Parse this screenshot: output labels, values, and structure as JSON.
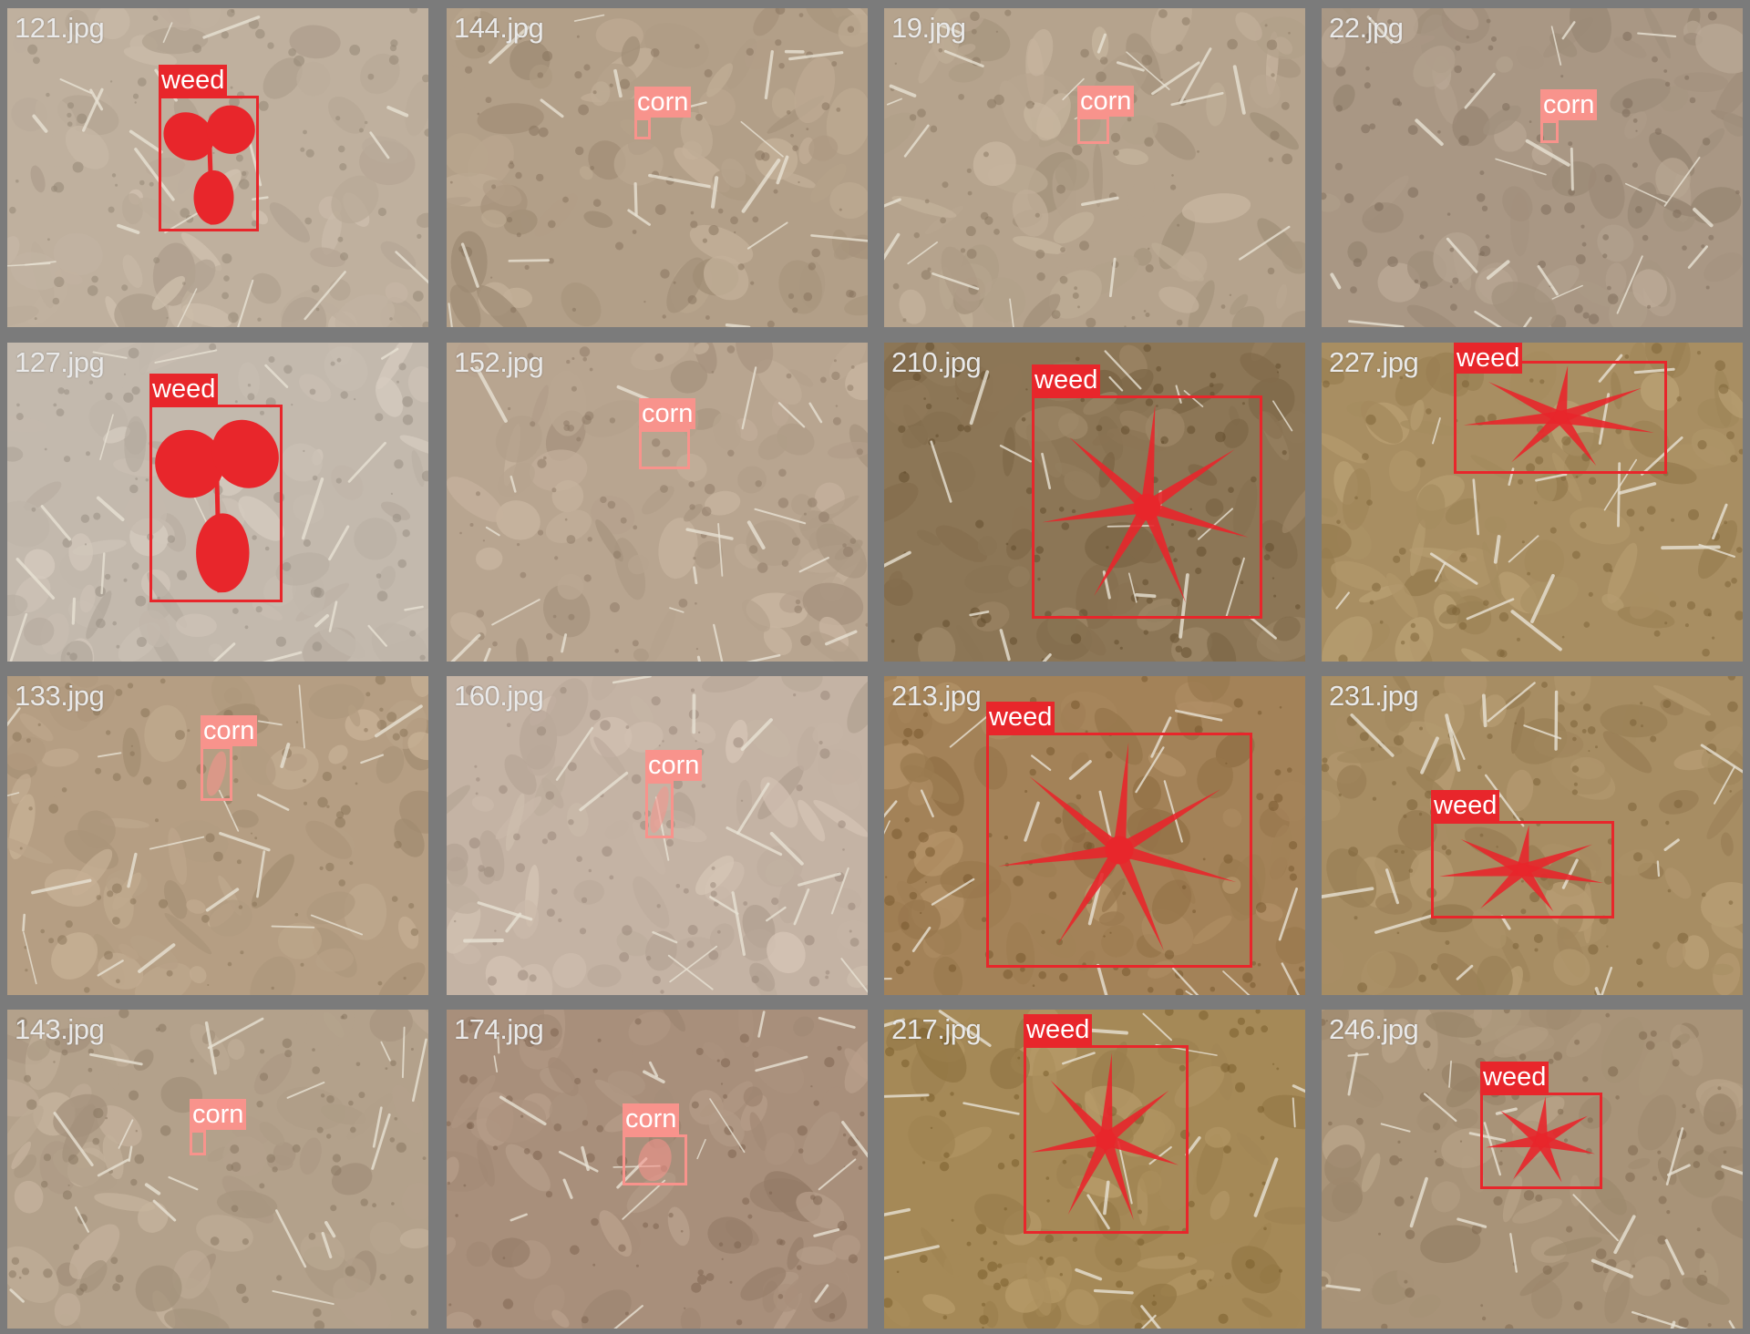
{
  "class_colors": {
    "weed": "#e8262b",
    "corn": "#f8938c"
  },
  "tiles": [
    {
      "file": "121.jpg",
      "soil": "#bfb09e",
      "plant": "broadleaf-seedling",
      "detections": [
        {
          "label": "weed"
        }
      ]
    },
    {
      "file": "144.jpg",
      "soil": "#b29f88",
      "plant": "none",
      "detections": [
        {
          "label": "corn"
        }
      ]
    },
    {
      "file": "19.jpg",
      "soil": "#b5a38d",
      "plant": "none",
      "detections": [
        {
          "label": "corn"
        }
      ]
    },
    {
      "file": "22.jpg",
      "soil": "#a99784",
      "plant": "none",
      "detections": [
        {
          "label": "corn"
        }
      ]
    },
    {
      "file": "127.jpg",
      "soil": "#c3b9ad",
      "plant": "broadleaf-seedling",
      "detections": [
        {
          "label": "weed"
        }
      ]
    },
    {
      "file": "152.jpg",
      "soil": "#b8a590",
      "plant": "none",
      "detections": [
        {
          "label": "corn"
        }
      ]
    },
    {
      "file": "210.jpg",
      "soil": "#8c7656",
      "plant": "grass-weed",
      "detections": [
        {
          "label": "weed"
        }
      ]
    },
    {
      "file": "227.jpg",
      "soil": "#a88e62",
      "plant": "grass-weed",
      "detections": [
        {
          "label": "weed"
        }
      ]
    },
    {
      "file": "133.jpg",
      "soil": "#b59e83",
      "plant": "small-shoot",
      "detections": [
        {
          "label": "corn"
        }
      ]
    },
    {
      "file": "160.jpg",
      "soil": "#c4b3a4",
      "plant": "small-shoot",
      "detections": [
        {
          "label": "corn"
        }
      ]
    },
    {
      "file": "213.jpg",
      "soil": "#a38258",
      "plant": "grass-weed",
      "detections": [
        {
          "label": "weed"
        }
      ]
    },
    {
      "file": "231.jpg",
      "soil": "#a78d63",
      "plant": "grass-weed",
      "detections": [
        {
          "label": "weed"
        }
      ]
    },
    {
      "file": "143.jpg",
      "soil": "#b3a18b",
      "plant": "none",
      "detections": [
        {
          "label": "corn"
        }
      ]
    },
    {
      "file": "174.jpg",
      "soil": "#a88f7b",
      "plant": "small-shoot",
      "detections": [
        {
          "label": "corn"
        }
      ]
    },
    {
      "file": "217.jpg",
      "soil": "#a58957",
      "plant": "grass-weed",
      "detections": [
        {
          "label": "weed"
        }
      ]
    },
    {
      "file": "246.jpg",
      "soil": "#a89378",
      "plant": "grass-weed",
      "detections": [
        {
          "label": "weed"
        }
      ]
    }
  ]
}
